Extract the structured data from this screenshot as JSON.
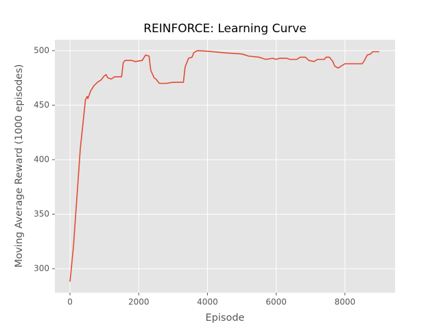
{
  "chart_data": {
    "type": "line",
    "title": "REINFORCE: Learning Curve",
    "x_label": "Episode",
    "y_label": "Moving Average Reward (1000 episodes)",
    "color": "#E24A33",
    "grid": true,
    "x": [
      0,
      100,
      200,
      300,
      400,
      450,
      500,
      520,
      600,
      700,
      800,
      900,
      1000,
      1050,
      1100,
      1200,
      1300,
      1500,
      1550,
      1600,
      1800,
      1900,
      2100,
      2200,
      2300,
      2350,
      2450,
      2500,
      2600,
      2800,
      3000,
      3300,
      3350,
      3450,
      3550,
      3600,
      3700,
      4000,
      4500,
      5000,
      5200,
      5500,
      5700,
      5900,
      6000,
      6100,
      6300,
      6400,
      6600,
      6700,
      6850,
      6950,
      7100,
      7200,
      7400,
      7450,
      7550,
      7650,
      7700,
      7800,
      7900,
      8000,
      8200,
      8500,
      8550,
      8650,
      8750,
      8800,
      9000
    ],
    "values": [
      288,
      320,
      365,
      410,
      440,
      455,
      458,
      456,
      463,
      468,
      471,
      473,
      477,
      478,
      475,
      474,
      476,
      476,
      489,
      491,
      491,
      490,
      491,
      496,
      495,
      482,
      475,
      474,
      470,
      470,
      471,
      471,
      485,
      493,
      494,
      498,
      500,
      499.5,
      498,
      497,
      495,
      494,
      492,
      493,
      492,
      493,
      493,
      492,
      492,
      494,
      494,
      491,
      490,
      492,
      492,
      494,
      494,
      490,
      486,
      484,
      486,
      488,
      488,
      488,
      490,
      496,
      497,
      499,
      499
    ],
    "xlim": [
      -440,
      9460
    ],
    "ylim": [
      278,
      510
    ],
    "xticks": [
      0,
      2000,
      4000,
      6000,
      8000
    ],
    "yticks": [
      300,
      350,
      400,
      450,
      500
    ]
  }
}
